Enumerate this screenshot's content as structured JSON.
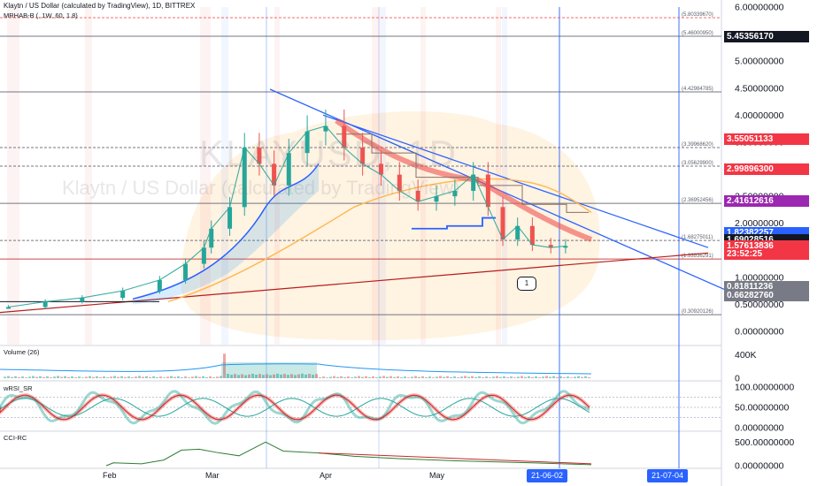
{
  "header": {
    "title": "Klaytn / US Dollar (calculated by TradingView), 1D, BITTREX",
    "indicator": "MRHAB-B (, 1W, 60, 1.8)"
  },
  "watermark": {
    "symbol": "KLAYUSD, 1D",
    "name": "Klaytn / US Dollar (calculated by TradingView)"
  },
  "colors": {
    "bull": "#26a69a",
    "bear": "#ef5350",
    "trend": "#2962ff",
    "support": "#b71c1c",
    "label_dark": "#131722",
    "label_red": "#f23645",
    "label_purple": "#9c27b0",
    "label_blue": "#2962ff",
    "label_gray": "#787b86"
  },
  "chart_data": [
    {
      "type": "line",
      "pane": "price",
      "title": "Klaytn / US Dollar (calculated by TradingView), 1D, BITTREX",
      "y_ticks": [
        "6.00000000",
        "5.50000000",
        "5.00000000",
        "4.50000000",
        "4.00000000",
        "3.50000000",
        "3.00000000",
        "2.50000000",
        "2.00000000",
        "1.50000000",
        "1.00000000",
        "0.50000000",
        "0.00000000"
      ],
      "ylim": [
        -0.2,
        6.1
      ],
      "x_ticks": [
        "Feb",
        "Mar",
        "Apr",
        "May",
        "21-06-02",
        "21-07-04"
      ],
      "series": [
        {
          "name": "close",
          "x": [
            "2021-01-05",
            "2021-01-15",
            "2021-01-25",
            "2021-02-05",
            "2021-02-15",
            "2021-02-22",
            "2021-02-27",
            "2021-03-01",
            "2021-03-06",
            "2021-03-10",
            "2021-03-14",
            "2021-03-18",
            "2021-03-22",
            "2021-03-27",
            "2021-04-01",
            "2021-04-06",
            "2021-04-11",
            "2021-04-16",
            "2021-04-21",
            "2021-04-26",
            "2021-05-01",
            "2021-05-06",
            "2021-05-11",
            "2021-05-15",
            "2021-05-19",
            "2021-05-23",
            "2021-05-27",
            "2021-06-01",
            "2021-06-05"
          ],
          "values": [
            0.45,
            0.55,
            0.62,
            0.75,
            0.95,
            1.25,
            1.55,
            1.9,
            2.3,
            3.4,
            3.1,
            2.7,
            3.3,
            3.7,
            3.8,
            3.4,
            3.1,
            2.9,
            2.6,
            2.4,
            2.5,
            2.6,
            2.9,
            2.3,
            1.7,
            1.95,
            1.6,
            1.55,
            1.58
          ]
        }
      ],
      "horizontal_levels": [
        {
          "label": "(5.80339670)",
          "value": 5.8033967
        },
        {
          "label": "(5.46000950)",
          "value": 5.4600095
        },
        {
          "label": "(4.42984785)",
          "value": 4.42984785
        },
        {
          "label": "(3.39968620)",
          "value": 3.3996862
        },
        {
          "label": "(3.05629900)",
          "value": 3.056299
        },
        {
          "label": "(2.36952456)",
          "value": 2.36952456
        },
        {
          "label": "(1.68275011)",
          "value": 1.68275011
        },
        {
          "label": "(1.33936291)",
          "value": 1.33936291
        },
        {
          "label": "(0.30920126)",
          "value": 0.30920126
        }
      ],
      "price_labels": [
        {
          "text": "5.45356170",
          "value": 5.4535617,
          "color": "#131722"
        },
        {
          "text": "3.55051133",
          "value": 3.55051133,
          "color": "#f23645"
        },
        {
          "text": "2.99896300",
          "value": 2.998963,
          "color": "#f23645"
        },
        {
          "text": "2.41612616",
          "value": 2.41612616,
          "color": "#9c27b0"
        },
        {
          "text": "1.82382257",
          "value": 1.82382257,
          "color": "#2962ff"
        },
        {
          "text": "1.69028516",
          "value": 1.69028516,
          "color": "#131722"
        },
        {
          "text": "1.57613836",
          "value": 1.57613836,
          "color": "#f23645"
        },
        {
          "text": "23:52:25",
          "value": 1.43,
          "color": "#f23645"
        },
        {
          "text": "0.81811236",
          "value": 0.81811236,
          "color": "#787b86"
        },
        {
          "text": "0.66282760",
          "value": 0.6628276,
          "color": "#787b86"
        }
      ],
      "annotation": "1"
    },
    {
      "type": "bar",
      "pane": "volume",
      "title": "Volume (26)",
      "y_ticks": [
        "400K",
        "0"
      ],
      "ylim": [
        0,
        500000
      ]
    },
    {
      "type": "line",
      "pane": "oscillator",
      "title": "wRSI_SR",
      "y_ticks": [
        "100.00000000",
        "50.00000000",
        "0.00000000"
      ],
      "ylim": [
        0,
        100
      ]
    },
    {
      "type": "line",
      "pane": "cci",
      "title": "CCI-RC",
      "y_ticks": [
        "500.00000000",
        "0.00000000"
      ],
      "ylim": [
        0,
        600
      ]
    }
  ],
  "x_axis": {
    "labels": [
      "Feb",
      "Mar",
      "Apr",
      "May"
    ],
    "highlight_dates": [
      "21-06-02",
      "21-07-04"
    ]
  }
}
